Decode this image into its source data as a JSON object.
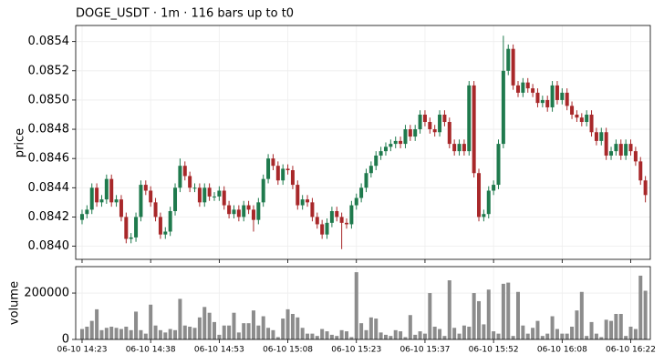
{
  "chart_data": [
    {
      "type": "candlestick",
      "title": "DOGE_USDT  ·  1m  ·  116 bars up to t0",
      "ylabel": "price",
      "up_color": "#1f7a4d",
      "down_color": "#a8282a",
      "grid": true,
      "xlim": [
        -1.3,
        116
      ],
      "ylim": [
        0.08391,
        0.08551
      ],
      "yticks": [
        {
          "value": 0.084,
          "label": "0.0840"
        },
        {
          "value": 0.0842,
          "label": "0.0842"
        },
        {
          "value": 0.0844,
          "label": "0.0844"
        },
        {
          "value": 0.0846,
          "label": "0.0846"
        },
        {
          "value": 0.0848,
          "label": "0.0848"
        },
        {
          "value": 0.085,
          "label": "0.0850"
        },
        {
          "value": 0.0852,
          "label": "0.0852"
        },
        {
          "value": 0.0854,
          "label": "0.0854"
        }
      ],
      "open": [
        0.08418,
        0.08422,
        0.08425,
        0.0844,
        0.0843,
        0.08432,
        0.08446,
        0.0843,
        0.08432,
        0.0842,
        0.08405,
        0.08406,
        0.0842,
        0.08442,
        0.08438,
        0.0843,
        0.0842,
        0.08408,
        0.0841,
        0.08424,
        0.0844,
        0.08455,
        0.08448,
        0.0844,
        0.0844,
        0.0843,
        0.0844,
        0.08434,
        0.08434,
        0.08438,
        0.08428,
        0.08422,
        0.08425,
        0.0842,
        0.08428,
        0.08425,
        0.08418,
        0.0843,
        0.08446,
        0.0846,
        0.08455,
        0.08445,
        0.08453,
        0.08452,
        0.08442,
        0.08428,
        0.08432,
        0.0843,
        0.0842,
        0.08415,
        0.08408,
        0.08416,
        0.08424,
        0.0842,
        0.08416,
        0.08415,
        0.08428,
        0.08433,
        0.0844,
        0.0845,
        0.08455,
        0.08462,
        0.08465,
        0.08468,
        0.0847,
        0.08472,
        0.0847,
        0.0848,
        0.08475,
        0.0848,
        0.0849,
        0.08485,
        0.0848,
        0.08478,
        0.0849,
        0.08485,
        0.0847,
        0.08465,
        0.0847,
        0.08465,
        0.0851,
        0.0845,
        0.0842,
        0.08422,
        0.08438,
        0.08442,
        0.0847,
        0.0852,
        0.08535,
        0.0851,
        0.08505,
        0.08512,
        0.08508,
        0.08505,
        0.08498,
        0.085,
        0.08495,
        0.0851,
        0.085,
        0.08505,
        0.08496,
        0.0849,
        0.08488,
        0.08485,
        0.0849,
        0.08478,
        0.08472,
        0.08478,
        0.08462,
        0.08465,
        0.0847,
        0.08462,
        0.0847,
        0.08465,
        0.08458,
        0.08445
      ],
      "high": [
        0.08425,
        0.08428,
        0.08443,
        0.08443,
        0.08435,
        0.08449,
        0.08449,
        0.08435,
        0.08435,
        0.08423,
        0.08409,
        0.08423,
        0.08445,
        0.08445,
        0.08441,
        0.08433,
        0.08423,
        0.08413,
        0.08427,
        0.08443,
        0.0846,
        0.08458,
        0.08451,
        0.08443,
        0.08443,
        0.08443,
        0.08443,
        0.08437,
        0.08441,
        0.08441,
        0.08431,
        0.08428,
        0.08428,
        0.08431,
        0.08431,
        0.08428,
        0.08433,
        0.08449,
        0.08463,
        0.08463,
        0.08458,
        0.08456,
        0.08456,
        0.08455,
        0.08445,
        0.08435,
        0.08435,
        0.08433,
        0.08423,
        0.08418,
        0.08419,
        0.08427,
        0.08427,
        0.08423,
        0.08419,
        0.08431,
        0.08436,
        0.08443,
        0.08453,
        0.08458,
        0.08465,
        0.08468,
        0.08471,
        0.08473,
        0.08475,
        0.08475,
        0.08483,
        0.08483,
        0.08483,
        0.08493,
        0.08493,
        0.08488,
        0.08483,
        0.08493,
        0.08493,
        0.08488,
        0.08473,
        0.08473,
        0.08473,
        0.08513,
        0.08513,
        0.08453,
        0.08425,
        0.08441,
        0.08445,
        0.08473,
        0.08544,
        0.08538,
        0.08538,
        0.08513,
        0.08515,
        0.08515,
        0.08511,
        0.08508,
        0.08503,
        0.08503,
        0.08513,
        0.08513,
        0.08508,
        0.08508,
        0.08499,
        0.08493,
        0.08491,
        0.08493,
        0.08493,
        0.08481,
        0.08481,
        0.08481,
        0.08468,
        0.08473,
        0.08473,
        0.08473,
        0.08473,
        0.08468,
        0.08461,
        0.08448
      ],
      "low": [
        0.08415,
        0.08419,
        0.08422,
        0.08427,
        0.08427,
        0.08429,
        0.08427,
        0.08427,
        0.08417,
        0.08402,
        0.08402,
        0.08403,
        0.08417,
        0.08435,
        0.08427,
        0.08417,
        0.08405,
        0.08405,
        0.08407,
        0.08421,
        0.08437,
        0.08445,
        0.08437,
        0.08437,
        0.08427,
        0.08427,
        0.08431,
        0.08431,
        0.08431,
        0.08425,
        0.08419,
        0.08419,
        0.08417,
        0.08417,
        0.08422,
        0.0841,
        0.08415,
        0.08427,
        0.08443,
        0.08452,
        0.08442,
        0.08442,
        0.08449,
        0.08439,
        0.08425,
        0.08425,
        0.08427,
        0.08417,
        0.08412,
        0.08405,
        0.08405,
        0.08413,
        0.08417,
        0.08398,
        0.08412,
        0.08412,
        0.08425,
        0.0843,
        0.08437,
        0.08447,
        0.08452,
        0.08459,
        0.08462,
        0.08465,
        0.08467,
        0.08467,
        0.08467,
        0.08472,
        0.08472,
        0.08477,
        0.08482,
        0.08477,
        0.08475,
        0.08475,
        0.08482,
        0.08467,
        0.08462,
        0.08462,
        0.08462,
        0.08462,
        0.08447,
        0.08417,
        0.08417,
        0.08419,
        0.08435,
        0.08439,
        0.08467,
        0.08517,
        0.08507,
        0.08502,
        0.08502,
        0.08505,
        0.08502,
        0.08495,
        0.08495,
        0.08492,
        0.08492,
        0.08497,
        0.08497,
        0.08493,
        0.08487,
        0.08485,
        0.08482,
        0.08482,
        0.08475,
        0.08469,
        0.08469,
        0.08459,
        0.08459,
        0.08462,
        0.08459,
        0.08459,
        0.08462,
        0.08455,
        0.08442,
        0.0843
      ],
      "close": [
        0.08422,
        0.08425,
        0.0844,
        0.0843,
        0.08432,
        0.08446,
        0.0843,
        0.08432,
        0.0842,
        0.08405,
        0.08406,
        0.0842,
        0.08442,
        0.08438,
        0.0843,
        0.0842,
        0.08408,
        0.0841,
        0.08424,
        0.0844,
        0.08455,
        0.08448,
        0.0844,
        0.0844,
        0.0843,
        0.0844,
        0.08434,
        0.08434,
        0.08438,
        0.08428,
        0.08422,
        0.08425,
        0.0842,
        0.08428,
        0.08425,
        0.08418,
        0.0843,
        0.08446,
        0.0846,
        0.08455,
        0.08445,
        0.08453,
        0.08452,
        0.08442,
        0.08428,
        0.08432,
        0.0843,
        0.0842,
        0.08415,
        0.08408,
        0.08416,
        0.08424,
        0.0842,
        0.08416,
        0.08415,
        0.08428,
        0.08433,
        0.0844,
        0.0845,
        0.08455,
        0.08462,
        0.08465,
        0.08468,
        0.0847,
        0.08472,
        0.0847,
        0.0848,
        0.08475,
        0.0848,
        0.0849,
        0.08485,
        0.0848,
        0.08478,
        0.0849,
        0.08485,
        0.0847,
        0.08465,
        0.0847,
        0.08465,
        0.0851,
        0.0845,
        0.0842,
        0.08422,
        0.08438,
        0.08442,
        0.0847,
        0.0852,
        0.08535,
        0.0851,
        0.08505,
        0.08512,
        0.08508,
        0.08505,
        0.08498,
        0.085,
        0.08495,
        0.0851,
        0.085,
        0.08505,
        0.08496,
        0.0849,
        0.08488,
        0.08485,
        0.0849,
        0.08478,
        0.08472,
        0.08478,
        0.08462,
        0.08465,
        0.0847,
        0.08462,
        0.0847,
        0.08465,
        0.08458,
        0.08445,
        0.08435
      ]
    },
    {
      "type": "bar",
      "ylabel": "volume",
      "color": "#8c8c8c",
      "grid": true,
      "xlim": [
        -1.3,
        116
      ],
      "xticks": [
        {
          "value": 0,
          "label": "06-10 14:23"
        },
        {
          "value": 14,
          "label": "06-10 14:38"
        },
        {
          "value": 28,
          "label": "06-10 14:53"
        },
        {
          "value": 42,
          "label": "06-10 15:08"
        },
        {
          "value": 56,
          "label": "06-10 15:23"
        },
        {
          "value": 70,
          "label": "06-10 15:37"
        },
        {
          "value": 84,
          "label": "06-10 15:52"
        },
        {
          "value": 98,
          "label": "06-10 16:08"
        },
        {
          "value": 112,
          "label": "06-10 16:22"
        }
      ],
      "ylim": [
        0,
        314000
      ],
      "yticks": [
        0,
        200000
      ],
      "values": [
        45000,
        55000,
        80000,
        130000,
        40000,
        50000,
        55000,
        50000,
        45000,
        55000,
        40000,
        120000,
        40000,
        25000,
        150000,
        60000,
        40000,
        30000,
        45000,
        40000,
        175000,
        60000,
        55000,
        50000,
        95000,
        140000,
        115000,
        75000,
        20000,
        60000,
        60000,
        115000,
        30000,
        70000,
        70000,
        125000,
        60000,
        100000,
        50000,
        40000,
        10000,
        90000,
        130000,
        110000,
        95000,
        50000,
        25000,
        25000,
        15000,
        45000,
        35000,
        20000,
        15000,
        40000,
        35000,
        10000,
        290000,
        70000,
        40000,
        95000,
        90000,
        30000,
        20000,
        15000,
        40000,
        35000,
        10000,
        105000,
        20000,
        35000,
        25000,
        200000,
        55000,
        45000,
        15000,
        255000,
        50000,
        25000,
        60000,
        55000,
        200000,
        165000,
        65000,
        215000,
        35000,
        25000,
        240000,
        245000,
        15000,
        205000,
        60000,
        25000,
        50000,
        80000,
        15000,
        25000,
        100000,
        45000,
        25000,
        25000,
        55000,
        125000,
        205000,
        15000,
        75000,
        25000,
        10000,
        85000,
        80000,
        110000,
        110000,
        15000,
        55000,
        45000,
        275000,
        210000
      ]
    }
  ]
}
